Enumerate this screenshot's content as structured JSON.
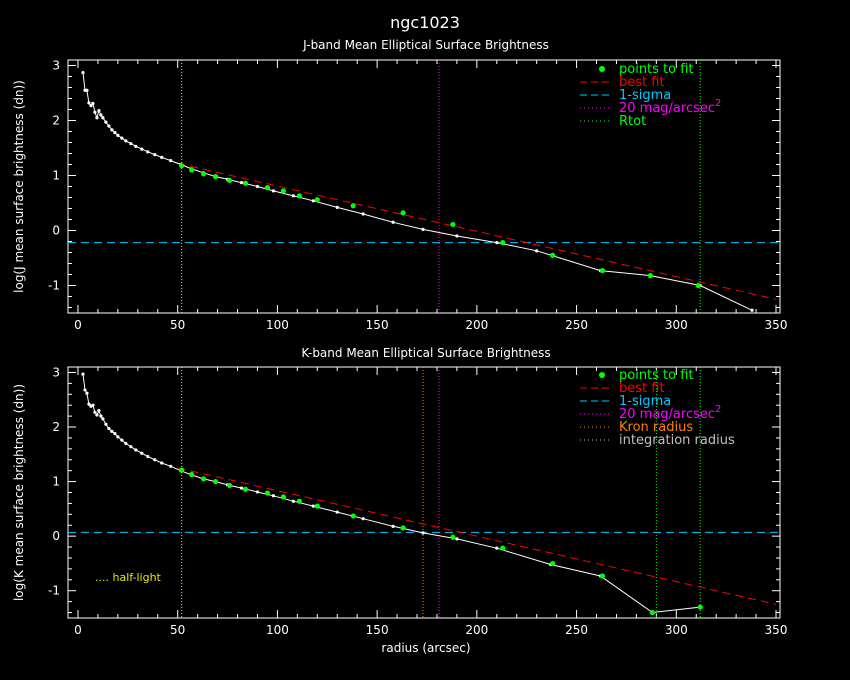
{
  "figure": {
    "title": "ngc1023",
    "xlabel": "radius (arcsec)"
  },
  "legend": {
    "points": "points to fit",
    "best": "best fit",
    "sigma": "1-sigma",
    "mag_prefix": "20 mag/arcsec",
    "mag_sup": "2",
    "rtot": "Rtot",
    "kron": "Kron radius",
    "integ": "integration radius"
  },
  "annotation": {
    "half_light": ".... half-light"
  },
  "colors": {
    "profile": "#ffffff",
    "fit_points": "#00ff00",
    "best_fit": "#ff0000",
    "sigma": "#00c8ff",
    "mag20": "#ff00ff",
    "rtot": "#00ff00",
    "kron": "#ff8000",
    "integration": "#c0c0c0",
    "half_light": "#e8e800"
  },
  "chart_data": [
    {
      "type": "line",
      "title": "J-band Mean Elliptical Surface Brightness",
      "ylabel": "log(J mean surface brightness (dn))",
      "xlim": [
        -5,
        352
      ],
      "ylim": [
        -1.5,
        3.1
      ],
      "xticks": [
        "0",
        "50",
        "100",
        "150",
        "200",
        "250",
        "300",
        "350"
      ],
      "yticks": [
        "-1",
        "0",
        "1",
        "2",
        "3"
      ],
      "profile_x": [
        2.5,
        3.5,
        4.5,
        5.5,
        6.5,
        7.5,
        8.5,
        9.5,
        10.5,
        11.5,
        12.5,
        14,
        15.5,
        17,
        18.5,
        20,
        22,
        24,
        26.5,
        29,
        32,
        35,
        38.5,
        42,
        46.5,
        51.5,
        57,
        63,
        69,
        75,
        82,
        90,
        98,
        108,
        118,
        130,
        143,
        158,
        173,
        190,
        210,
        230,
        262,
        287,
        312,
        338
      ],
      "profile_y": [
        2.87,
        2.55,
        2.55,
        2.32,
        2.27,
        2.31,
        2.15,
        2.05,
        2.18,
        2.1,
        2.05,
        1.97,
        1.9,
        1.83,
        1.78,
        1.73,
        1.68,
        1.63,
        1.58,
        1.53,
        1.48,
        1.43,
        1.38,
        1.33,
        1.27,
        1.2,
        1.12,
        1.05,
        0.98,
        0.93,
        0.87,
        0.8,
        0.72,
        0.63,
        0.54,
        0.42,
        0.3,
        0.15,
        0.02,
        -0.1,
        -0.22,
        -0.37,
        -0.73,
        -0.82,
        -1.0,
        -1.45
      ],
      "fit_x": [
        52,
        57,
        63,
        69,
        76,
        84,
        95,
        103,
        111,
        120,
        138,
        163,
        188,
        213,
        238,
        263,
        287,
        311
      ],
      "fit_y": [
        1.18,
        1.1,
        1.03,
        0.98,
        0.91,
        0.86,
        0.78,
        0.72,
        0.63,
        0.56,
        0.45,
        0.32,
        0.11,
        -0.22,
        -0.45,
        -0.73,
        -0.82,
        -1.0
      ],
      "fit_line": {
        "x": [
          50,
          350
        ],
        "y": [
          1.22,
          -1.25
        ]
      },
      "sigma_level": -0.22,
      "mag20_radius": 181,
      "rtot_radius": 312,
      "half_light_radius": 52
    },
    {
      "type": "line",
      "title": "K-band Mean Elliptical Surface Brightness",
      "ylabel": "log(K mean surface brightness (dn))",
      "xlim": [
        -5,
        352
      ],
      "ylim": [
        -1.5,
        3.1
      ],
      "xticks": [
        "0",
        "50",
        "100",
        "150",
        "200",
        "250",
        "300",
        "350"
      ],
      "yticks": [
        "-1",
        "0",
        "1",
        "2",
        "3"
      ],
      "profile_x": [
        2.5,
        3.5,
        4.5,
        5.5,
        6.5,
        7.5,
        8.5,
        9.5,
        10.5,
        11.5,
        12.5,
        14,
        15.5,
        17,
        18.5,
        20,
        22,
        24,
        26.5,
        29,
        32,
        35,
        38.5,
        42,
        46.5,
        51.5,
        57,
        63,
        69,
        75,
        82,
        90,
        98,
        108,
        118,
        130,
        143,
        158,
        173,
        190,
        210,
        237,
        262,
        288,
        312
      ],
      "profile_y": [
        2.97,
        2.68,
        2.62,
        2.42,
        2.38,
        2.4,
        2.27,
        2.22,
        2.3,
        2.2,
        2.15,
        2.05,
        1.97,
        1.92,
        1.88,
        1.82,
        1.76,
        1.7,
        1.64,
        1.58,
        1.52,
        1.46,
        1.4,
        1.34,
        1.28,
        1.2,
        1.12,
        1.05,
        1.0,
        0.94,
        0.88,
        0.81,
        0.74,
        0.64,
        0.55,
        0.44,
        0.32,
        0.18,
        0.06,
        -0.05,
        -0.22,
        -0.52,
        -0.73,
        -1.4,
        -1.3
      ],
      "fit_x": [
        52,
        57,
        63,
        69,
        76,
        84,
        95,
        103,
        111,
        120,
        138,
        163,
        188,
        213,
        238,
        263,
        288,
        312
      ],
      "fit_y": [
        1.21,
        1.13,
        1.05,
        1.0,
        0.93,
        0.86,
        0.79,
        0.72,
        0.64,
        0.55,
        0.37,
        0.15,
        -0.02,
        -0.22,
        -0.5,
        -0.73,
        -1.4,
        -1.3
      ],
      "fit_line": {
        "x": [
          50,
          350
        ],
        "y": [
          1.25,
          -1.25
        ]
      },
      "sigma_level": 0.07,
      "mag20_radius": 181,
      "kron_radius": 173,
      "integration_radius": 290,
      "rtot_radius": 312,
      "half_light_radius": 52
    }
  ]
}
